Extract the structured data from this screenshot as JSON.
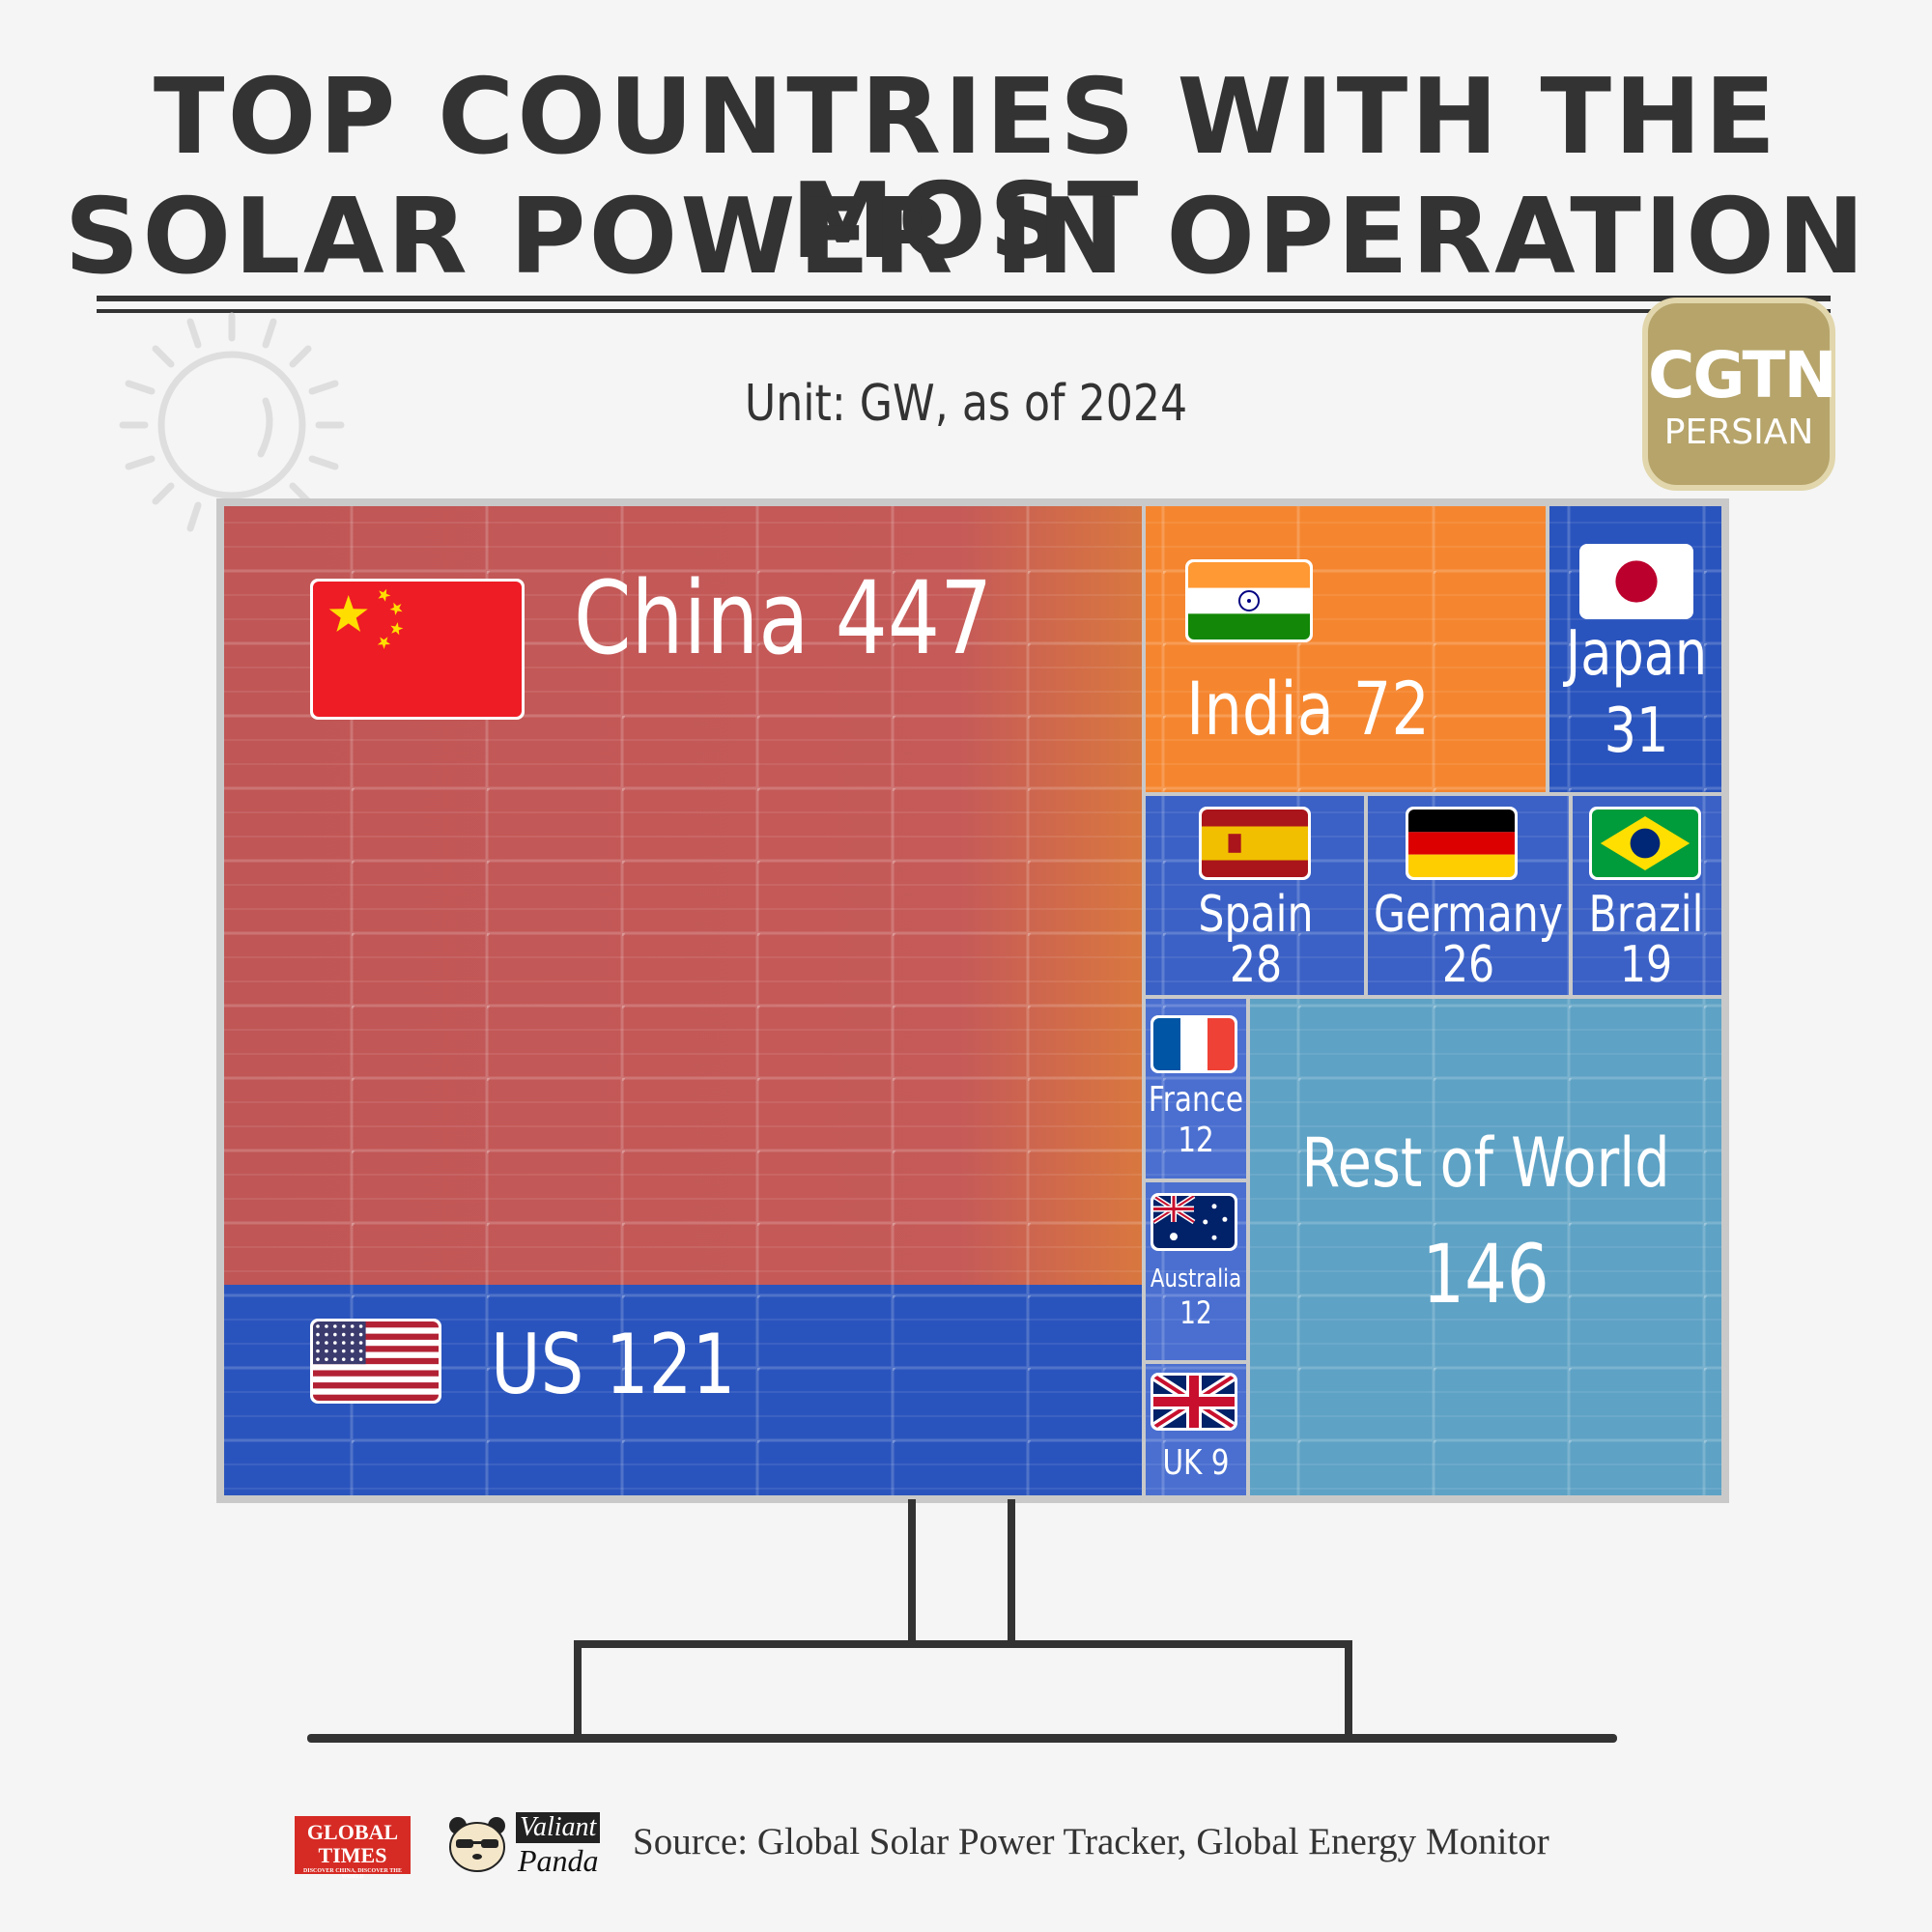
{
  "title": {
    "line1": "TOP COUNTRIES WITH THE MOST",
    "line2": "SOLAR POWER IN OPERATION"
  },
  "subtitle": "Unit: GW,  as of 2024",
  "logo": {
    "primary": "CGTN",
    "secondary": "PERSIAN"
  },
  "footer": {
    "source": "Source: Global Solar Power Tracker, Global Energy Monitor",
    "publisher1": {
      "line1": "GLOBAL",
      "line2": "TIMES",
      "tagline": "DISCOVER CHINA, DISCOVER THE WORLD"
    },
    "publisher2": {
      "line1": "Valiant",
      "line2": "Panda"
    }
  },
  "chart_data": {
    "type": "treemap",
    "unit": "GW",
    "items": [
      {
        "name": "China",
        "value": 447,
        "label": "China 447",
        "color": "#c35a58",
        "flag": "china-flag"
      },
      {
        "name": "US",
        "value": 121,
        "label": "US 121",
        "color": "#2a54bd",
        "flag": "us-flag"
      },
      {
        "name": "India",
        "value": 72,
        "label": "India 72",
        "color": "#f5862f",
        "flag": "india-flag"
      },
      {
        "name": "Japan",
        "value": 31,
        "label": [
          "Japan",
          "31"
        ],
        "color": "#2a54bd",
        "flag": "japan-flag"
      },
      {
        "name": "Spain",
        "value": 28,
        "label": [
          "Spain",
          "28"
        ],
        "color": "#3b61c6",
        "flag": "spain-flag"
      },
      {
        "name": "Germany",
        "value": 26,
        "label": [
          "Germany",
          "26"
        ],
        "color": "#3b61c6",
        "flag": "germany-flag"
      },
      {
        "name": "Brazil",
        "value": 19,
        "label": [
          "Brazil",
          "19"
        ],
        "color": "#3b61c6",
        "flag": "brazil-flag"
      },
      {
        "name": "France",
        "value": 12,
        "label": [
          "France",
          "12"
        ],
        "color": "#4a6fd0",
        "flag": "france-flag"
      },
      {
        "name": "Australia",
        "value": 12,
        "label": [
          "Australia",
          "12"
        ],
        "color": "#4a6fd0",
        "flag": "australia-flag"
      },
      {
        "name": "UK",
        "value": 9,
        "label": "UK 9",
        "color": "#4a6fd0",
        "flag": "uk-flag"
      },
      {
        "name": "Rest of World",
        "value": 146,
        "label": [
          "Rest of World",
          "146"
        ],
        "color": "#5ea2c5",
        "flag": ""
      }
    ]
  }
}
